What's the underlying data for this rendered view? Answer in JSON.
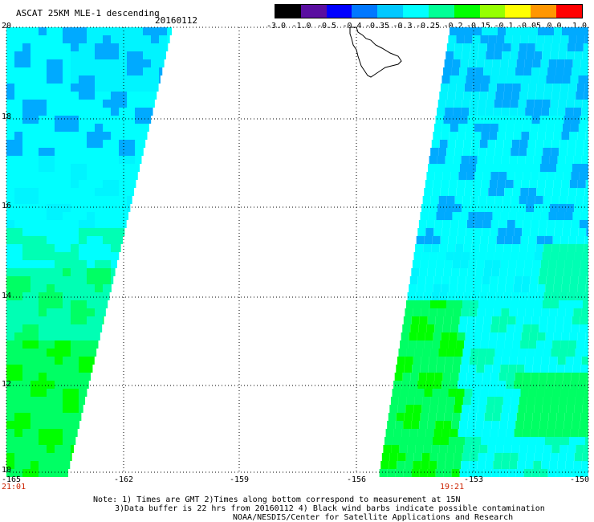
{
  "header": {
    "title": "ASCAT 25KM MLE-1 descending",
    "date": "20160112"
  },
  "colorbar": {
    "labels": [
      "-3.0",
      "-1.0",
      "-0.5",
      "-0.4",
      "-0.35",
      "-0.3",
      "-0.25",
      "-0.2",
      "-0.15",
      "-0.1",
      "-0.05",
      "0.0",
      "1.0"
    ],
    "colors": [
      "#000000",
      "#5a0fa0",
      "#0000ff",
      "#0078ff",
      "#00c8ff",
      "#00ffff",
      "#00ff96",
      "#00ff00",
      "#96ff00",
      "#ffff00",
      "#ff9600",
      "#ff0000"
    ]
  },
  "axes": {
    "lat_labels": [
      "20",
      "18",
      "16",
      "14",
      "12",
      "10"
    ],
    "lon_labels": [
      "-165",
      "-162",
      "-159",
      "-156",
      "-153",
      "-150"
    ]
  },
  "times": {
    "left": "21:01",
    "right": "19:21"
  },
  "notes": {
    "line1": "Note: 1) Times are GMT 2)Times along bottom correspond to measurement at 15N",
    "line2": "3)Data buffer is 22 hrs from 20160112 4) Black wind barbs indicate possible contamination",
    "line3": "NOAA/NESDIS/Center for Satellite Applications and Research"
  },
  "map_colors": {
    "cyan": "#00ffff",
    "light_cyan": "#00f4ff",
    "blue": "#00aaff",
    "deep_blue": "#0078ff",
    "aqua_green": "#00ffb4",
    "green": "#00ff64",
    "bright_green": "#00ff00"
  }
}
